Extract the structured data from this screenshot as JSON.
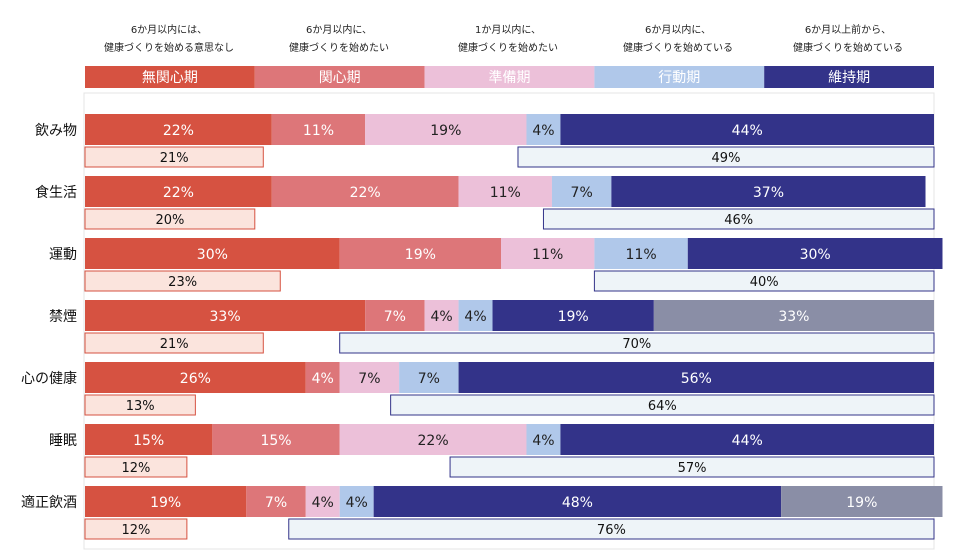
{
  "chart_data": {
    "type": "bar",
    "orientation": "horizontal",
    "stacked": true,
    "header_notes": [
      [
        "6か月以内には、",
        "健康づくりを始める意思なし"
      ],
      [
        "6か月以内に、",
        "健康づくりを始めたい"
      ],
      [
        "1か月以内に、",
        "健康づくりを始めたい"
      ],
      [
        "6か月以内に、",
        "健康づくりを始めている"
      ],
      [
        "6か月以上前から、",
        "健康づくりを始めている"
      ]
    ],
    "legend": [
      "無関心期",
      "関心期",
      "準備期",
      "行動期",
      "維持期"
    ],
    "colors": {
      "無関心期": "#d65241",
      "関心期": "#dd7679",
      "準備期": "#ecc0d9",
      "行動期": "#b0c8ea",
      "維持期": "#333389",
      "gray": "#8a8ea6",
      "left_box_fill": "#fbe4dd",
      "left_box_border": "#d65241",
      "right_box_fill": "#eef4f8",
      "right_box_border": "#333389"
    },
    "categories": [
      "飲み物",
      "食生活",
      "運動",
      "禁煙",
      "心の健康",
      "睡眠",
      "適正飲酒"
    ],
    "rows": [
      {
        "segments": [
          {
            "stage": "無関心期",
            "label": "22%",
            "value": 22
          },
          {
            "stage": "関心期",
            "label": "11%",
            "value": 11
          },
          {
            "stage": "準備期",
            "label": "19%",
            "value": 19
          },
          {
            "stage": "行動期",
            "label": "4%",
            "value": 4
          },
          {
            "stage": "維持期",
            "label": "44%",
            "value": 44
          }
        ],
        "left_summary": "21%",
        "left_value": 21,
        "right_summary": "49%",
        "right_value": 49
      },
      {
        "segments": [
          {
            "stage": "無関心期",
            "label": "22%",
            "value": 22
          },
          {
            "stage": "関心期",
            "label": "22%",
            "value": 22
          },
          {
            "stage": "準備期",
            "label": "11%",
            "value": 11
          },
          {
            "stage": "行動期",
            "label": "7%",
            "value": 7
          },
          {
            "stage": "維持期",
            "label": "37%",
            "value": 37
          }
        ],
        "left_summary": "20%",
        "left_value": 20,
        "right_summary": "46%",
        "right_value": 46
      },
      {
        "segments": [
          {
            "stage": "無関心期",
            "label": "30%",
            "value": 30
          },
          {
            "stage": "関心期",
            "label": "19%",
            "value": 19
          },
          {
            "stage": "準備期",
            "label": "11%",
            "value": 11
          },
          {
            "stage": "行動期",
            "label": "11%",
            "value": 11
          },
          {
            "stage": "維持期",
            "label": "30%",
            "value": 30
          }
        ],
        "left_summary": "23%",
        "left_value": 23,
        "right_summary": "40%",
        "right_value": 40
      },
      {
        "segments": [
          {
            "stage": "無関心期",
            "label": "33%",
            "value": 33
          },
          {
            "stage": "関心期",
            "label": "7%",
            "value": 7
          },
          {
            "stage": "準備期",
            "label": "4%",
            "value": 4
          },
          {
            "stage": "行動期",
            "label": "4%",
            "value": 4
          },
          {
            "stage": "維持期",
            "label": "19%",
            "value": 19
          },
          {
            "stage": "gray",
            "label": "33%",
            "value": 33
          }
        ],
        "left_summary": "21%",
        "left_value": 21,
        "right_summary": "70%",
        "right_value": 70
      },
      {
        "segments": [
          {
            "stage": "無関心期",
            "label": "26%",
            "value": 26
          },
          {
            "stage": "関心期",
            "label": "4%",
            "value": 4
          },
          {
            "stage": "準備期",
            "label": "7%",
            "value": 7
          },
          {
            "stage": "行動期",
            "label": "7%",
            "value": 7
          },
          {
            "stage": "維持期",
            "label": "56%",
            "value": 56
          }
        ],
        "left_summary": "13%",
        "left_value": 13,
        "right_summary": "64%",
        "right_value": 64
      },
      {
        "segments": [
          {
            "stage": "無関心期",
            "label": "15%",
            "value": 15
          },
          {
            "stage": "関心期",
            "label": "15%",
            "value": 15
          },
          {
            "stage": "準備期",
            "label": "22%",
            "value": 22
          },
          {
            "stage": "行動期",
            "label": "4%",
            "value": 4
          },
          {
            "stage": "維持期",
            "label": "44%",
            "value": 44
          }
        ],
        "left_summary": "12%",
        "left_value": 12,
        "right_summary": "57%",
        "right_value": 57
      },
      {
        "segments": [
          {
            "stage": "無関心期",
            "label": "19%",
            "value": 19
          },
          {
            "stage": "関心期",
            "label": "7%",
            "value": 7
          },
          {
            "stage": "準備期",
            "label": "4%",
            "value": 4
          },
          {
            "stage": "行動期",
            "label": "4%",
            "value": 4
          },
          {
            "stage": "維持期",
            "label": "48%",
            "value": 48
          },
          {
            "stage": "gray",
            "label": "19%",
            "value": 19
          }
        ],
        "left_summary": "12%",
        "left_value": 12,
        "right_summary": "76%",
        "right_value": 76
      }
    ],
    "xlim": [
      0,
      100
    ],
    "grid": false
  }
}
